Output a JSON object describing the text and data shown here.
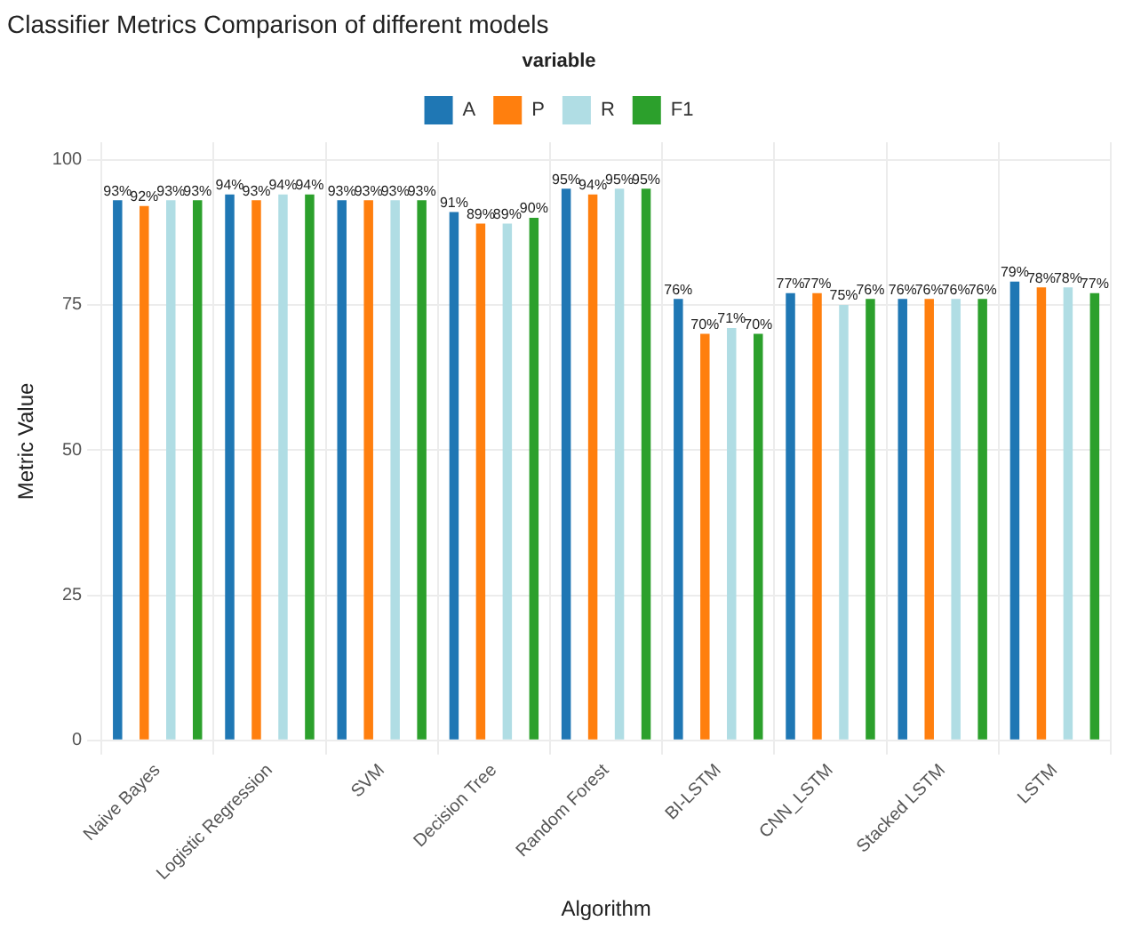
{
  "chart_data": {
    "type": "bar",
    "title": "Classifier Metrics Comparison of different models",
    "xlabel": "Algorithm",
    "ylabel": "Metric Value",
    "legend_title": "variable",
    "legend": "top",
    "categories": [
      "Naive Bayes",
      "Logistic Regression",
      "SVM",
      "Decision Tree",
      "Random Forest",
      "BI-LSTM",
      "CNN_LSTM",
      "Stacked LSTM",
      "LSTM"
    ],
    "series": [
      {
        "name": "A",
        "color": "#1f77b4",
        "values": [
          93,
          94,
          93,
          91,
          95,
          76,
          77,
          76,
          79
        ],
        "value_labels": [
          "93%",
          "94%",
          "93%",
          "91%",
          "95%",
          "76%",
          "77%",
          "76%",
          "79%"
        ]
      },
      {
        "name": "P",
        "color": "#ff7f0e",
        "values": [
          92,
          93,
          93,
          89,
          94,
          70,
          77,
          76,
          78
        ],
        "value_labels": [
          "92%",
          "93%",
          "93%",
          "89%",
          "94%",
          "70%",
          "77%",
          "76%",
          "78%"
        ]
      },
      {
        "name": "R",
        "color": "#b0dde4",
        "values": [
          93,
          94,
          93,
          89,
          95,
          71,
          75,
          76,
          78
        ],
        "value_labels": [
          "93%",
          "94%",
          "93%",
          "89%",
          "95%",
          "71%",
          "75%",
          "76%",
          "78%"
        ]
      },
      {
        "name": "F1",
        "color": "#2ca02c",
        "values": [
          93,
          94,
          93,
          90,
          95,
          70,
          76,
          76,
          77
        ],
        "value_labels": [
          "93%",
          "94%",
          "93%",
          "90%",
          "95%",
          "70%",
          "76%",
          "76%",
          "77%"
        ]
      }
    ],
    "ylim": [
      0,
      103
    ],
    "yticks": [
      0,
      25,
      50,
      75,
      100
    ],
    "grid": true
  }
}
